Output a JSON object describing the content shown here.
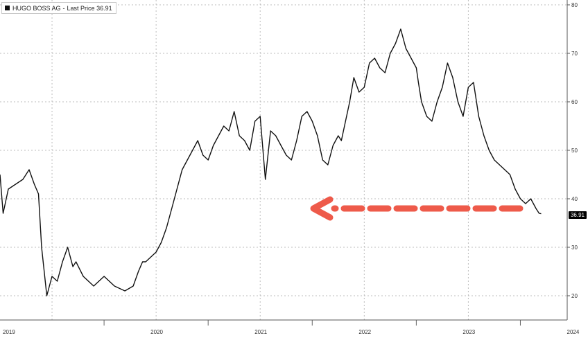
{
  "legend": {
    "security": "HUGO BOSS AG",
    "separator": "-",
    "last_price_label": "Last Price",
    "last_price_value": "36.91"
  },
  "price_tag": "36.91",
  "colors": {
    "line": "#111111",
    "grid": "#bdbdbd",
    "arrow": "#ee5a4a",
    "tag_bg": "#000000"
  },
  "chart_data": {
    "type": "line",
    "title": "",
    "series": [
      {
        "name": "HUGO BOSS AG",
        "x": [
          2019.0,
          2019.03,
          2019.08,
          2019.15,
          2019.22,
          2019.28,
          2019.33,
          2019.37,
          2019.4,
          2019.45,
          2019.5,
          2019.55,
          2019.6,
          2019.65,
          2019.7,
          2019.73,
          2019.8,
          2019.9,
          2020.0,
          2020.1,
          2020.2,
          2020.28,
          2020.33,
          2020.37,
          2020.4,
          2020.45,
          2020.5,
          2020.55,
          2020.6,
          2020.65,
          2020.7,
          2020.75,
          2020.8,
          2020.85,
          2020.9,
          2020.95,
          2021.0,
          2021.05,
          2021.1,
          2021.15,
          2021.2,
          2021.25,
          2021.3,
          2021.35,
          2021.4,
          2021.45,
          2021.5,
          2021.55,
          2021.6,
          2021.65,
          2021.7,
          2021.75,
          2021.8,
          2021.85,
          2021.9,
          2021.95,
          2022.0,
          2022.05,
          2022.1,
          2022.15,
          2022.2,
          2022.25,
          2022.28,
          2022.32,
          2022.36,
          2022.4,
          2022.45,
          2022.5,
          2022.55,
          2022.6,
          2022.65,
          2022.7,
          2022.75,
          2022.8,
          2022.85,
          2022.9,
          2022.95,
          2023.0,
          2023.02,
          2023.05,
          2023.1,
          2023.15,
          2023.2,
          2023.25,
          2023.3,
          2023.35,
          2023.4,
          2023.45,
          2023.5,
          2023.55,
          2023.6,
          2023.65,
          2023.7,
          2023.75,
          2023.8,
          2023.85,
          2023.9,
          2023.95,
          2024.0,
          2024.05,
          2024.1,
          2024.15,
          2024.18,
          2024.2
        ],
        "values": [
          45,
          37,
          42,
          43,
          44,
          46,
          43,
          41,
          30,
          20,
          24,
          23,
          27,
          30,
          26,
          27,
          24,
          22,
          24,
          22,
          21,
          22,
          25,
          27,
          27,
          28,
          29,
          31,
          34,
          38,
          42,
          46,
          48,
          50,
          52,
          49,
          48,
          51,
          53,
          55,
          54,
          58,
          53,
          52,
          50,
          56,
          57,
          44,
          54,
          53,
          51,
          49,
          48,
          52,
          57,
          58,
          56,
          53,
          48,
          47,
          51,
          53,
          52,
          56,
          60,
          65,
          62,
          63,
          68,
          69,
          67,
          66,
          70,
          72,
          75,
          71,
          69,
          67,
          64,
          60,
          57,
          56,
          60,
          63,
          68,
          65,
          60,
          57,
          63,
          64,
          57,
          53,
          50,
          48,
          47,
          46,
          45,
          42,
          40,
          39,
          40,
          38,
          37,
          36.91
        ]
      }
    ],
    "xlim": [
      2019.0,
      2024.45
    ],
    "ylim": [
      15,
      81
    ],
    "x_tick_labels": [
      "2019",
      "2020",
      "2021",
      "2022",
      "2023",
      "2024"
    ],
    "x_tick_values": [
      2019.0,
      2020.0,
      2021.0,
      2022.0,
      2023.0,
      2024.0
    ],
    "y_ticks": [
      20,
      30,
      40,
      50,
      60,
      70,
      80
    ],
    "y_axis_side": "right",
    "grid": true,
    "annotation": {
      "type": "arrow",
      "direction": "left",
      "style": "dashed",
      "at_value": 37
    }
  }
}
